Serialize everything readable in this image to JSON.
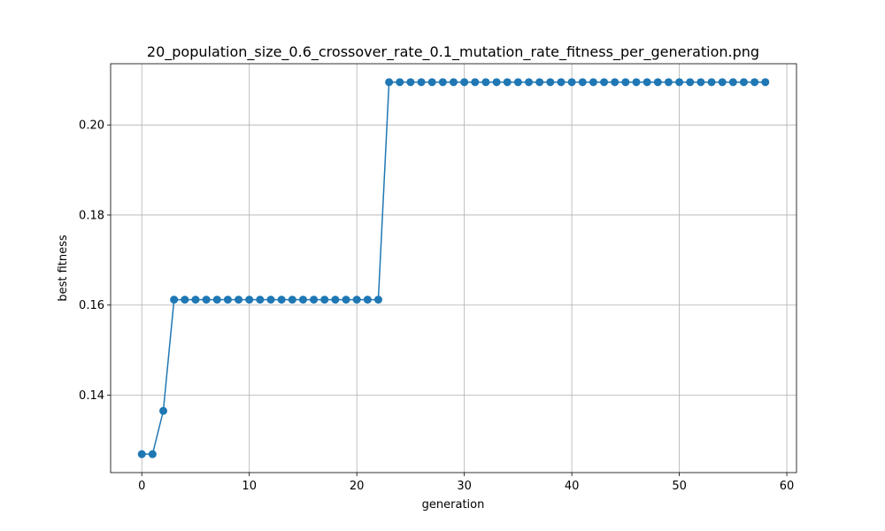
{
  "chart_data": {
    "type": "line",
    "title": "20_population_size_0.6_crossover_rate_0.1_mutation_rate_fitness_per_generation.png",
    "xlabel": "generation",
    "ylabel": "best fitness",
    "xlim": [
      -2.9,
      60.9
    ],
    "ylim": [
      0.1228,
      0.2136
    ],
    "xticks": [
      0,
      10,
      20,
      30,
      40,
      50,
      60
    ],
    "yticks": [
      0.14,
      0.16,
      0.18,
      0.2
    ],
    "ytick_labels": [
      "0.14",
      "0.16",
      "0.18",
      "0.20"
    ],
    "grid": true,
    "color": "#1f77b4",
    "marker": "circle",
    "series": [
      {
        "x": [
          0,
          1,
          2,
          3,
          4,
          5,
          6,
          7,
          8,
          9,
          10,
          11,
          12,
          13,
          14,
          15,
          16,
          17,
          18,
          19,
          20,
          21,
          22,
          23,
          24,
          25,
          26,
          27,
          28,
          29,
          30,
          31,
          32,
          33,
          34,
          35,
          36,
          37,
          38,
          39,
          40,
          41,
          42,
          43,
          44,
          45,
          46,
          47,
          48,
          49,
          50,
          51,
          52,
          53,
          54,
          55,
          56,
          57,
          58
        ],
        "values": [
          0.1269,
          0.1269,
          0.1365,
          0.1612,
          0.1612,
          0.1612,
          0.1612,
          0.1612,
          0.1612,
          0.1612,
          0.1612,
          0.1612,
          0.1612,
          0.1612,
          0.1612,
          0.1612,
          0.1612,
          0.1612,
          0.1612,
          0.1612,
          0.1612,
          0.1612,
          0.1612,
          0.2095,
          0.2095,
          0.2095,
          0.2095,
          0.2095,
          0.2095,
          0.2095,
          0.2095,
          0.2095,
          0.2095,
          0.2095,
          0.2095,
          0.2095,
          0.2095,
          0.2095,
          0.2095,
          0.2095,
          0.2095,
          0.2095,
          0.2095,
          0.2095,
          0.2095,
          0.2095,
          0.2095,
          0.2095,
          0.2095,
          0.2095,
          0.2095,
          0.2095,
          0.2095,
          0.2095,
          0.2095,
          0.2095,
          0.2095,
          0.2095,
          0.2095
        ]
      }
    ]
  }
}
